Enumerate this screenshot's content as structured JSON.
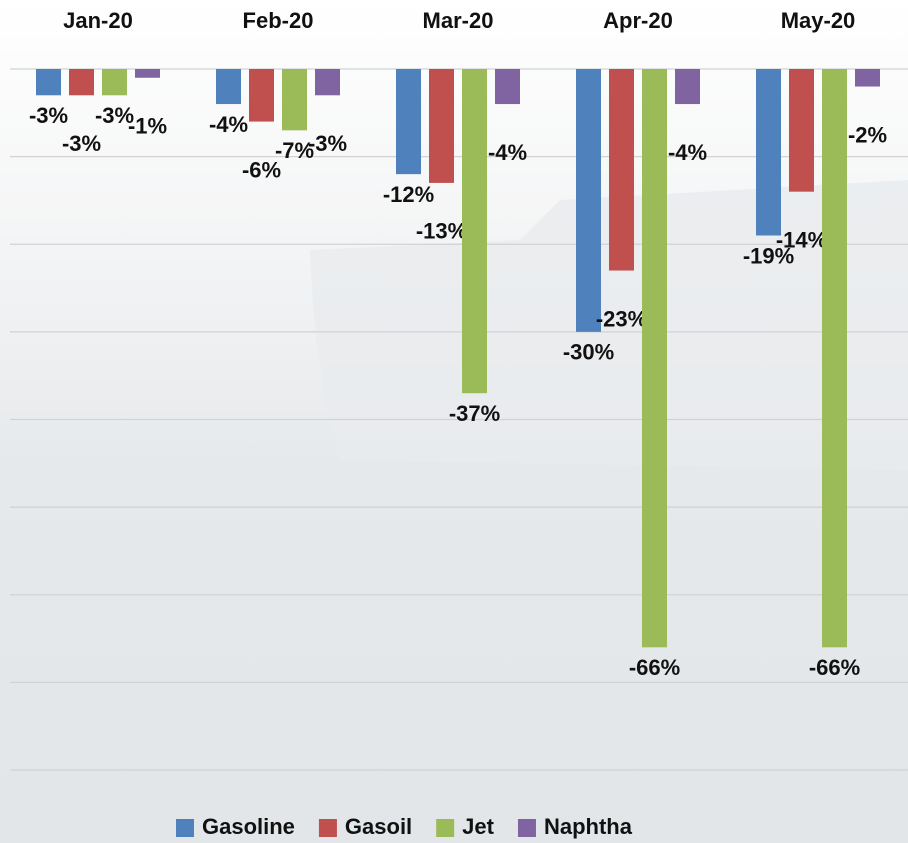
{
  "chart_data": {
    "type": "bar",
    "categories": [
      "Jan-20",
      "Feb-20",
      "Mar-20",
      "Apr-20",
      "May-20"
    ],
    "series": [
      {
        "name": "Gasoline",
        "color": "#4f81bd",
        "values": [
          -3,
          -4,
          -12,
          -30,
          -19
        ],
        "value_labels": [
          "-3%",
          "-4%",
          "-12%",
          "-30%",
          "-19%"
        ]
      },
      {
        "name": "Gasoil",
        "color": "#c0504d",
        "values": [
          -3,
          -6,
          -13,
          -23,
          -14
        ],
        "value_labels": [
          "-3%",
          "-6%",
          "-13%",
          "-23%",
          "-14%"
        ]
      },
      {
        "name": "Jet",
        "color": "#9bbb59",
        "values": [
          -3,
          -7,
          -37,
          -66,
          -66
        ],
        "value_labels": [
          "-3%",
          "-7%",
          "-37%",
          "-66%",
          "-66%"
        ]
      },
      {
        "name": "Naphtha",
        "color": "#8064a2",
        "values": [
          -1,
          -3,
          -4,
          -4,
          -2
        ],
        "value_labels": [
          "-1%",
          "-3%",
          "-4%",
          "-4%",
          "-2%"
        ]
      }
    ],
    "ylim": [
      -80,
      0
    ],
    "yticks": [
      0,
      -10,
      -20,
      -30,
      -40,
      -50,
      -60,
      -70,
      -80
    ],
    "grid": true,
    "legend": "bottom"
  }
}
